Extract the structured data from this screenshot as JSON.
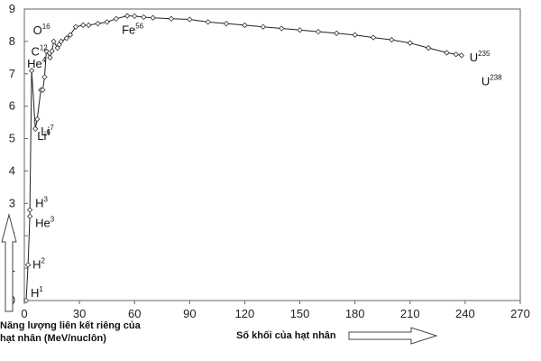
{
  "chart_data": {
    "type": "line",
    "xlim": [
      0,
      270
    ],
    "ylim": [
      0,
      9
    ],
    "x_ticks": [
      "0",
      "30",
      "60",
      "90",
      "120",
      "150",
      "180",
      "210",
      "240",
      "270"
    ],
    "y_ticks": [
      "0",
      "1",
      "2",
      "3",
      "4",
      "5",
      "6",
      "7",
      "8",
      "9"
    ],
    "ylabel_line1": "Năng lượng liên kết riêng của",
    "ylabel_line2": "hạt nhân (MeV/nuclôn)",
    "xlabel": "Số khối của hạt nhân",
    "grid": false,
    "series": [
      {
        "name": "",
        "points": [
          [
            1,
            0
          ],
          [
            2,
            1.1
          ],
          [
            3,
            2.6
          ],
          [
            3,
            2.8
          ],
          [
            4,
            7.1
          ],
          [
            6,
            5.3
          ],
          [
            7,
            5.6
          ],
          [
            9,
            6.5
          ],
          [
            10,
            6.5
          ],
          [
            11,
            6.9
          ],
          [
            12,
            7.7
          ],
          [
            14,
            7.5
          ],
          [
            15,
            7.7
          ],
          [
            16,
            8.0
          ],
          [
            18,
            7.8
          ],
          [
            19,
            7.9
          ],
          [
            20,
            8.0
          ],
          [
            23,
            8.1
          ],
          [
            25,
            8.2
          ],
          [
            28,
            8.45
          ],
          [
            32,
            8.5
          ],
          [
            35,
            8.5
          ],
          [
            40,
            8.55
          ],
          [
            45,
            8.6
          ],
          [
            50,
            8.7
          ],
          [
            56,
            8.79
          ],
          [
            60,
            8.78
          ],
          [
            65,
            8.75
          ],
          [
            70,
            8.73
          ],
          [
            80,
            8.7
          ],
          [
            90,
            8.68
          ],
          [
            100,
            8.6
          ],
          [
            110,
            8.55
          ],
          [
            120,
            8.5
          ],
          [
            130,
            8.45
          ],
          [
            140,
            8.4
          ],
          [
            150,
            8.35
          ],
          [
            160,
            8.3
          ],
          [
            170,
            8.25
          ],
          [
            180,
            8.2
          ],
          [
            190,
            8.12
          ],
          [
            200,
            8.05
          ],
          [
            210,
            7.95
          ],
          [
            220,
            7.8
          ],
          [
            230,
            7.65
          ],
          [
            235,
            7.6
          ],
          [
            238,
            7.57
          ]
        ]
      }
    ],
    "annotations": [
      {
        "base": "H",
        "sup": "1",
        "x": 1,
        "y": 0
      },
      {
        "base": "H",
        "sup": "2",
        "x": 2,
        "y": 1.1
      },
      {
        "base": "H",
        "sup": "3",
        "x": 3,
        "y": 2.8
      },
      {
        "base": "He",
        "sup": "3",
        "x": 3,
        "y": 2.6
      },
      {
        "base": "He",
        "sup": "4",
        "x": 4,
        "y": 7.1
      },
      {
        "base": "Li",
        "sup": "7",
        "x": 7,
        "y": 5.6
      },
      {
        "base": "Li",
        "sup": "6",
        "x": 6,
        "y": 5.3
      },
      {
        "base": "C",
        "sup": "12",
        "x": 12,
        "y": 7.7
      },
      {
        "base": "O",
        "sup": "16",
        "x": 16,
        "y": 8.0
      },
      {
        "base": "Fe",
        "sup": "56",
        "x": 56,
        "y": 8.79
      },
      {
        "base": "U",
        "sup": "235",
        "x": 235,
        "y": 7.6
      },
      {
        "base": "U",
        "sup": "238",
        "x": 238,
        "y": 7.57
      }
    ]
  }
}
